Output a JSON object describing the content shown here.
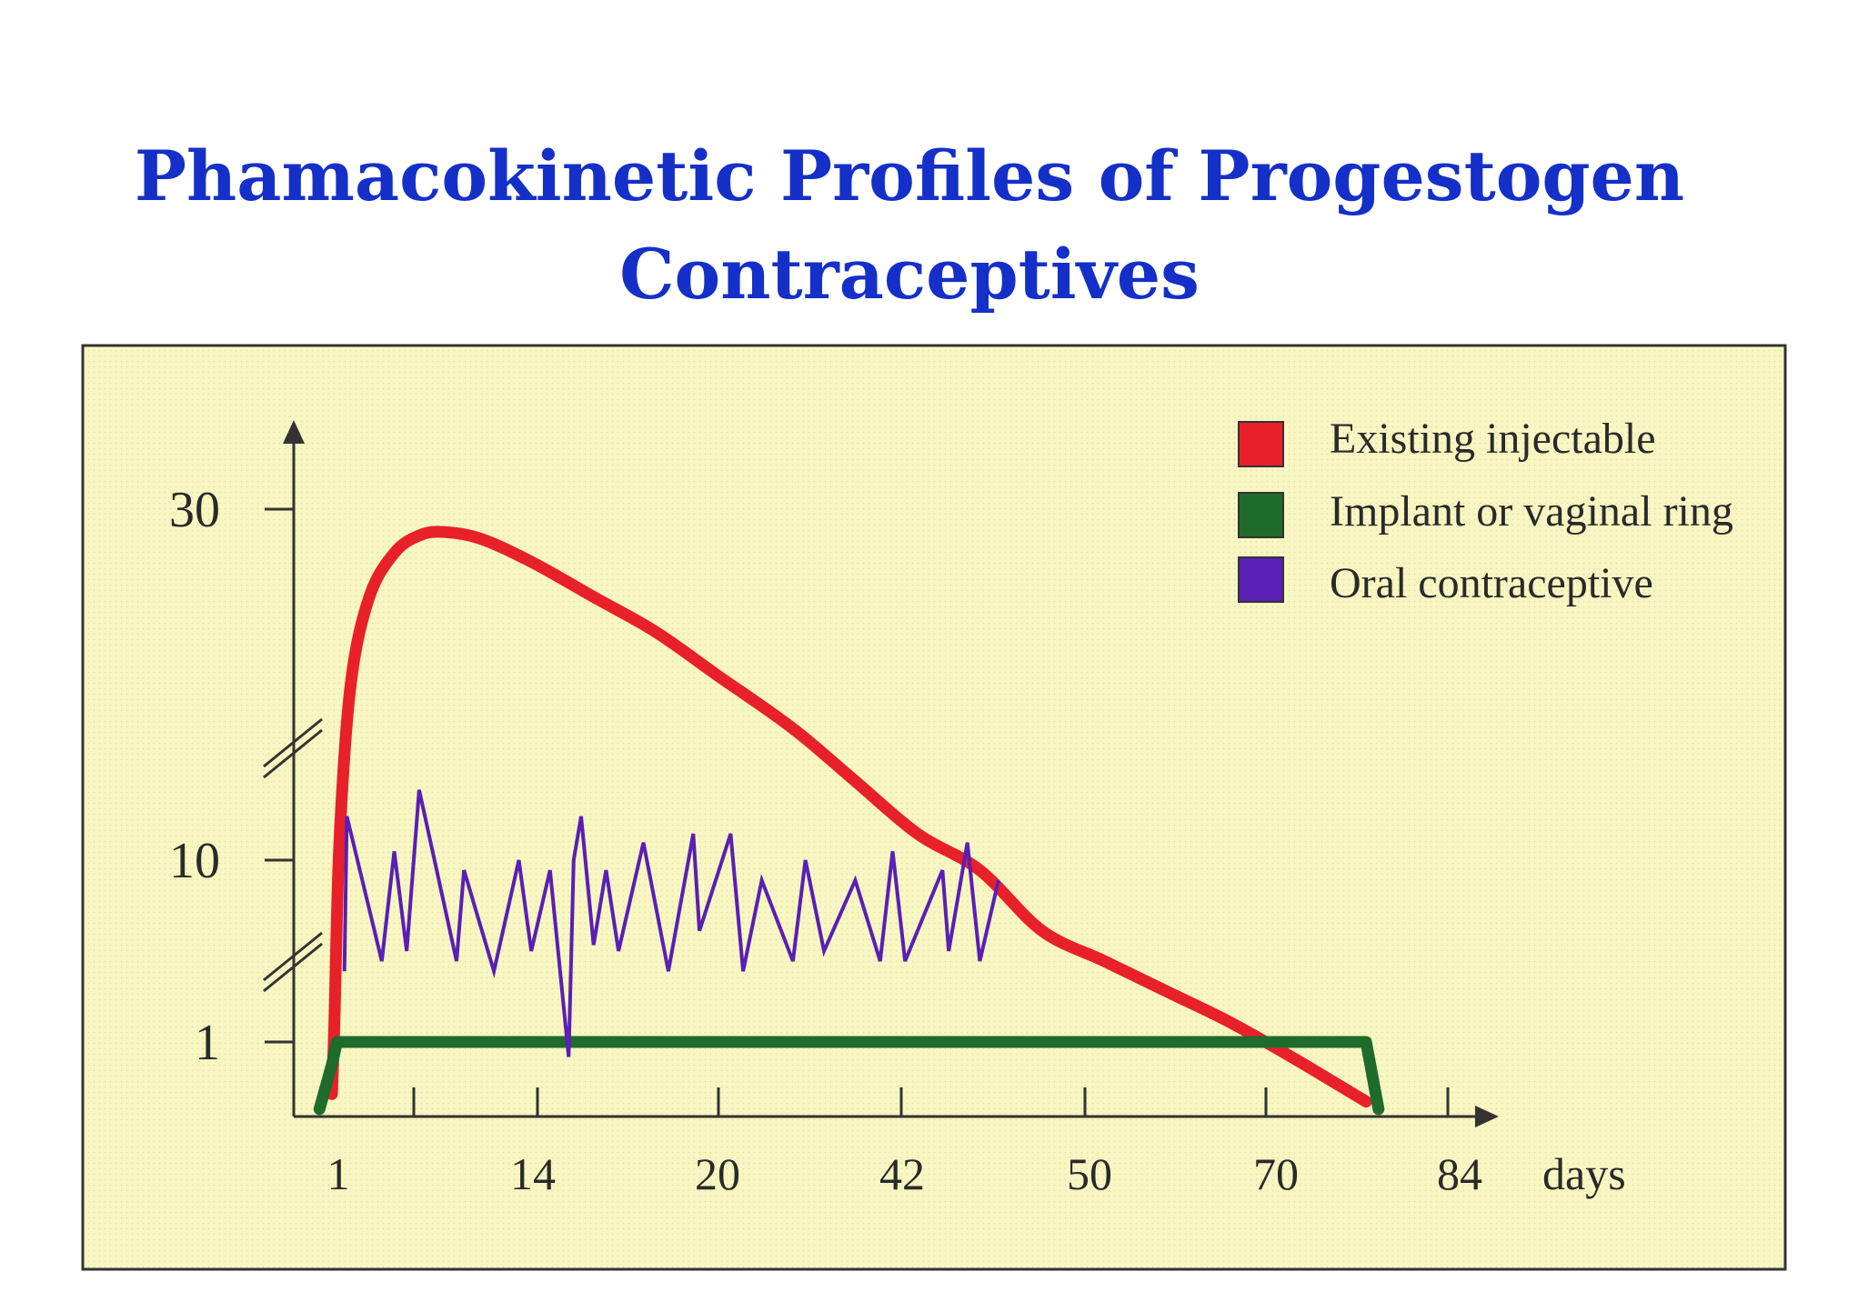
{
  "title": {
    "line1": "Phamacokinetic Profiles of Progestogen",
    "line2": "Contraceptives"
  },
  "colors": {
    "title": "#1530c8",
    "panel_bg": "#f8f6c2",
    "panel_border": "#333333",
    "injectable": "#e8202a",
    "implant": "#1e6b2c",
    "oral": "#5a1fb4"
  },
  "chart_data": {
    "type": "line",
    "xlabel": "days",
    "x_ticks": [
      "1",
      "14",
      "20",
      "42",
      "50",
      "70",
      "84"
    ],
    "y_ticks": [
      "30",
      "10",
      "1"
    ],
    "axis_breaks": "y-axis broken between 10 and 30 and between 1 and 10",
    "legend": {
      "placement": "top-right",
      "entries": [
        "Existing injectable",
        "Implant or vaginal ring",
        "Oral contraceptive"
      ]
    },
    "series": [
      {
        "name": "Existing injectable",
        "note": "y read in printed tick units over the broken axis",
        "x": [
          1,
          1.2,
          1.6,
          2.5,
          4,
          6,
          8,
          10,
          13,
          17,
          22,
          27,
          32,
          38,
          43,
          48,
          53,
          58,
          63,
          68,
          73,
          78,
          84
        ],
        "y": [
          0.3,
          2,
          11,
          20,
          25,
          27.5,
          28.5,
          28.7,
          28.3,
          27,
          25,
          23,
          20.5,
          17.5,
          14.5,
          11.5,
          9.5,
          6.5,
          5,
          3.5,
          2,
          0.8,
          0.2
        ]
      },
      {
        "name": "Implant or vaginal ring",
        "x": [
          0,
          1,
          1.4,
          80,
          81,
          84,
          85
        ],
        "y": [
          0.1,
          0.7,
          1,
          1,
          1,
          1,
          0.1
        ]
      },
      {
        "name": "Oral contraceptive",
        "x": [
          2,
          2.2,
          5,
          6,
          7,
          8,
          11,
          11.6,
          14,
          16,
          17,
          18.5,
          20,
          20.4,
          21,
          22,
          23,
          24,
          26,
          28,
          30,
          30.5,
          33,
          34,
          35.5,
          38,
          39,
          40.5,
          43,
          45,
          46,
          47,
          50,
          50.5,
          52,
          53,
          54.5
        ],
        "y": [
          4.5,
          12.5,
          5,
          10.5,
          5.5,
          14,
          5,
          9.5,
          4.5,
          10,
          5.5,
          9.5,
          0.8,
          10,
          12.5,
          5.8,
          9.5,
          5.5,
          11,
          4.5,
          11.5,
          6.5,
          11.5,
          4.5,
          9,
          5,
          10,
          5.5,
          9,
          5,
          10.5,
          5,
          9.5,
          5.5,
          11,
          5,
          9
        ]
      }
    ]
  }
}
